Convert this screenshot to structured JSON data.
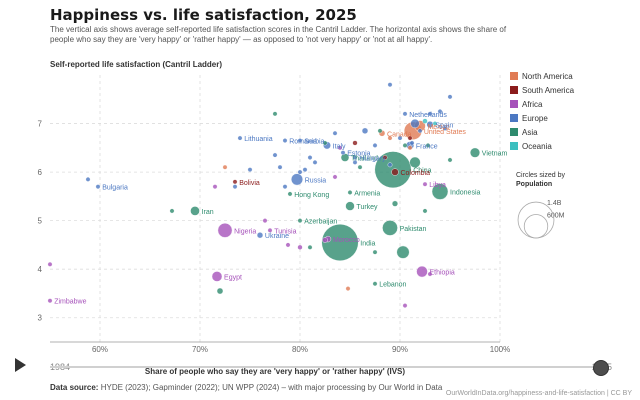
{
  "header": {
    "title": "Happiness vs. life satisfaction, 2025",
    "subtitle": "The vertical axis shows average self-reported life satisfaction scores in the Cantril Ladder. The horizontal axis shows the share of people who say they are 'very happy' or 'rather happy' — as opposed to 'not very happy' or 'not at all happy'."
  },
  "footer": {
    "source_label": "Data source:",
    "source_text": "HYDE (2023); Gapminder (2022); UN WPP (2024) – with major processing by Our World in Data",
    "credit": "OurWorldInData.org/happiness-and-life-satisfaction | CC BY"
  },
  "timeline": {
    "start": "1984",
    "end": "2025",
    "handle_position": 1.0
  },
  "chart_data": {
    "type": "scatter",
    "title": "Happiness vs. life satisfaction, 2025",
    "xlabel": "Share of people who say they are 'very happy' or 'rather happy' (IVS)",
    "ylabel": "Self-reported life satisfaction (Cantril Ladder)",
    "xlim": [
      55,
      100
    ],
    "ylim": [
      2.5,
      8.0
    ],
    "xticks": [
      60,
      70,
      80,
      90,
      100
    ],
    "xtick_labels": [
      "60%",
      "70%",
      "80%",
      "90%",
      "100%"
    ],
    "yticks": [
      3,
      4,
      5,
      6,
      7
    ],
    "grid": true,
    "legend_position": "right",
    "legend": [
      {
        "name": "North America",
        "color": "#e07b54"
      },
      {
        "name": "South America",
        "color": "#8b1c1c"
      },
      {
        "name": "Africa",
        "color": "#a652ba"
      },
      {
        "name": "Europe",
        "color": "#4c78c2"
      },
      {
        "name": "Asia",
        "color": "#2e8b6e"
      },
      {
        "name": "Oceania",
        "color": "#3cbfbf"
      }
    ],
    "size_legend": {
      "title_line1": "Circles sized by",
      "title_line2": "Population",
      "items": [
        {
          "label": "600M",
          "value": 600
        },
        {
          "label": "1.4B",
          "value": 1400
        }
      ]
    },
    "series": [
      {
        "name": "North America",
        "points": [
          {
            "x": 88.2,
            "y": 6.8,
            "pop": 40,
            "label": "Canada"
          },
          {
            "x": 92.0,
            "y": 6.95,
            "pop": 130,
            "label": "Mexico"
          },
          {
            "x": 91.3,
            "y": 6.85,
            "pop": 340,
            "label": "United States"
          },
          {
            "x": 72.5,
            "y": 6.1,
            "pop": 3
          },
          {
            "x": 89.0,
            "y": 6.7,
            "pop": 5
          },
          {
            "x": 91.0,
            "y": 6.5,
            "pop": 8
          },
          {
            "x": 84.8,
            "y": 3.6,
            "pop": 3
          }
        ]
      },
      {
        "name": "South America",
        "points": [
          {
            "x": 73.5,
            "y": 5.8,
            "pop": 12,
            "label": "Bolivia"
          },
          {
            "x": 89.5,
            "y": 6.0,
            "pop": 52,
            "label": "Colombia"
          },
          {
            "x": 88.5,
            "y": 6.3,
            "pop": 20
          },
          {
            "x": 91.0,
            "y": 6.7,
            "pop": 10
          },
          {
            "x": 85.5,
            "y": 6.6,
            "pop": 25
          }
        ]
      },
      {
        "name": "Africa",
        "points": [
          {
            "x": 72.5,
            "y": 4.8,
            "pop": 220,
            "label": "Nigeria"
          },
          {
            "x": 77.0,
            "y": 4.8,
            "pop": 12,
            "label": "Tunisia"
          },
          {
            "x": 71.7,
            "y": 3.85,
            "pop": 110,
            "label": "Egypt"
          },
          {
            "x": 82.8,
            "y": 4.62,
            "pop": 38,
            "label": "Morocco"
          },
          {
            "x": 92.5,
            "y": 5.75,
            "pop": 7,
            "label": "Libya"
          },
          {
            "x": 92.2,
            "y": 3.95,
            "pop": 130,
            "label": "Ethiopia"
          },
          {
            "x": 55.0,
            "y": 3.35,
            "pop": 16,
            "label": "Zimbabwe"
          },
          {
            "x": 55.0,
            "y": 4.1,
            "pop": 5
          },
          {
            "x": 71.5,
            "y": 5.7,
            "pop": 10
          },
          {
            "x": 76.5,
            "y": 5.0,
            "pop": 20
          },
          {
            "x": 78.8,
            "y": 4.5,
            "pop": 15
          },
          {
            "x": 80.0,
            "y": 4.45,
            "pop": 25
          },
          {
            "x": 82.5,
            "y": 4.6,
            "pop": 30
          },
          {
            "x": 90.5,
            "y": 3.25,
            "pop": 8
          },
          {
            "x": 93.0,
            "y": 3.9,
            "pop": 20
          },
          {
            "x": 83.5,
            "y": 5.9,
            "pop": 6
          },
          {
            "x": 84.0,
            "y": 6.5,
            "pop": 5
          }
        ]
      },
      {
        "name": "Europe",
        "points": [
          {
            "x": 74.0,
            "y": 6.7,
            "pop": 3,
            "label": "Lithuania"
          },
          {
            "x": 78.5,
            "y": 6.65,
            "pop": 19,
            "label": "Romania"
          },
          {
            "x": 80.0,
            "y": 6.65,
            "pop": 7,
            "label": "Serbia"
          },
          {
            "x": 82.7,
            "y": 6.55,
            "pop": 59,
            "label": "Italy"
          },
          {
            "x": 84.3,
            "y": 6.4,
            "pop": 1,
            "label": "Estonia"
          },
          {
            "x": 85.5,
            "y": 6.3,
            "pop": 10,
            "label": "Hungary"
          },
          {
            "x": 90.5,
            "y": 7.2,
            "pop": 18,
            "label": "Netherlands"
          },
          {
            "x": 93.0,
            "y": 6.98,
            "pop": 48,
            "label": "Spain"
          },
          {
            "x": 91.0,
            "y": 6.55,
            "pop": 66,
            "label": "France"
          },
          {
            "x": 79.7,
            "y": 5.85,
            "pop": 144,
            "label": "Russia"
          },
          {
            "x": 59.8,
            "y": 5.7,
            "pop": 6,
            "label": "Bulgaria"
          },
          {
            "x": 76.0,
            "y": 4.7,
            "pop": 37,
            "label": "Ukraine"
          },
          {
            "x": 58.8,
            "y": 5.85,
            "pop": 3
          },
          {
            "x": 89.0,
            "y": 7.8,
            "pop": 6
          },
          {
            "x": 95.0,
            "y": 7.55,
            "pop": 5
          },
          {
            "x": 94.0,
            "y": 7.25,
            "pop": 10
          },
          {
            "x": 91.5,
            "y": 7.0,
            "pop": 83
          },
          {
            "x": 92.0,
            "y": 6.85,
            "pop": 11
          },
          {
            "x": 94.5,
            "y": 6.9,
            "pop": 9
          },
          {
            "x": 93.0,
            "y": 7.2,
            "pop": 5
          },
          {
            "x": 91.2,
            "y": 6.6,
            "pop": 10
          },
          {
            "x": 90.0,
            "y": 6.7,
            "pop": 9
          },
          {
            "x": 86.5,
            "y": 6.85,
            "pop": 38
          },
          {
            "x": 87.5,
            "y": 6.55,
            "pop": 6
          },
          {
            "x": 83.5,
            "y": 6.8,
            "pop": 3
          },
          {
            "x": 81.0,
            "y": 6.3,
            "pop": 4
          },
          {
            "x": 80.5,
            "y": 6.05,
            "pop": 4
          },
          {
            "x": 80.0,
            "y": 6.0,
            "pop": 5
          },
          {
            "x": 78.0,
            "y": 6.1,
            "pop": 3
          },
          {
            "x": 77.5,
            "y": 6.35,
            "pop": 4
          },
          {
            "x": 75.0,
            "y": 6.05,
            "pop": 2
          },
          {
            "x": 73.5,
            "y": 5.7,
            "pop": 2
          },
          {
            "x": 78.5,
            "y": 5.7,
            "pop": 9
          },
          {
            "x": 81.5,
            "y": 6.2,
            "pop": 2
          },
          {
            "x": 85.5,
            "y": 6.2,
            "pop": 3
          },
          {
            "x": 89.0,
            "y": 6.15,
            "pop": 4
          }
        ]
      },
      {
        "name": "Asia",
        "points": [
          {
            "x": 84.5,
            "y": 6.3,
            "pop": 70,
            "label": "Thailand"
          },
          {
            "x": 97.5,
            "y": 6.4,
            "pop": 100,
            "label": "Vietnam"
          },
          {
            "x": 94.0,
            "y": 5.6,
            "pop": 280,
            "label": "Indonesia"
          },
          {
            "x": 89.3,
            "y": 6.05,
            "pop": 1440,
            "label": "China"
          },
          {
            "x": 84.0,
            "y": 4.55,
            "pop": 1450,
            "label": "India"
          },
          {
            "x": 89.0,
            "y": 4.85,
            "pop": 250,
            "label": "Pakistan"
          },
          {
            "x": 85.0,
            "y": 5.58,
            "pop": 3,
            "label": "Armenia"
          },
          {
            "x": 85.0,
            "y": 5.3,
            "pop": 85,
            "label": "Turkey"
          },
          {
            "x": 79.0,
            "y": 5.55,
            "pop": 7,
            "label": "Hong Kong"
          },
          {
            "x": 80.0,
            "y": 5.0,
            "pop": 10,
            "label": "Azerbaijan"
          },
          {
            "x": 69.5,
            "y": 5.2,
            "pop": 90,
            "label": "Iran"
          },
          {
            "x": 87.5,
            "y": 3.7,
            "pop": 5,
            "label": "Lebanon"
          },
          {
            "x": 67.2,
            "y": 5.2,
            "pop": 10
          },
          {
            "x": 77.5,
            "y": 7.2,
            "pop": 10
          },
          {
            "x": 88.0,
            "y": 6.85,
            "pop": 5
          },
          {
            "x": 92.8,
            "y": 6.55,
            "pop": 3
          },
          {
            "x": 95.0,
            "y": 6.25,
            "pop": 5
          },
          {
            "x": 91.5,
            "y": 6.2,
            "pop": 125
          },
          {
            "x": 86.0,
            "y": 6.1,
            "pop": 20
          },
          {
            "x": 90.3,
            "y": 4.35,
            "pop": 170
          },
          {
            "x": 87.5,
            "y": 4.35,
            "pop": 8
          },
          {
            "x": 81.0,
            "y": 4.45,
            "pop": 10
          },
          {
            "x": 89.5,
            "y": 5.35,
            "pop": 35
          },
          {
            "x": 92.5,
            "y": 5.2,
            "pop": 10
          },
          {
            "x": 72.0,
            "y": 3.55,
            "pop": 40
          },
          {
            "x": 90.5,
            "y": 6.55,
            "pop": 10
          },
          {
            "x": 82.5,
            "y": 6.6,
            "pop": 4
          }
        ]
      },
      {
        "name": "Oceania",
        "points": [
          {
            "x": 92.5,
            "y": 7.05,
            "pop": 27
          },
          {
            "x": 93.5,
            "y": 7.0,
            "pop": 5
          }
        ]
      }
    ]
  }
}
